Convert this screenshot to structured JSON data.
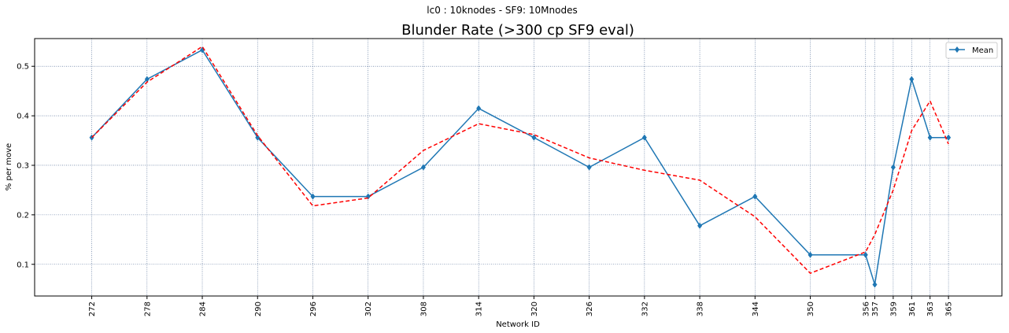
{
  "figure": {
    "suptitle": "lc0 : 10knodes - SF9: 10Mnodes"
  },
  "chart_data": {
    "type": "line",
    "title": "Blunder Rate (>300 cp SF9 eval)",
    "xlabel": "Network ID",
    "ylabel": "% per move",
    "x": [
      272,
      278,
      284,
      290,
      296,
      302,
      308,
      314,
      320,
      326,
      332,
      338,
      344,
      350,
      356,
      357,
      359,
      361,
      363,
      365
    ],
    "xticks": [
      272,
      278,
      284,
      290,
      296,
      302,
      308,
      314,
      320,
      326,
      332,
      338,
      344,
      350,
      356,
      357,
      359,
      361,
      363,
      365
    ],
    "xlim": [
      265.8,
      370.8
    ],
    "yticks": [
      0.1,
      0.2,
      0.3,
      0.4,
      0.5
    ],
    "ylim": [
      0.036,
      0.556
    ],
    "grid": true,
    "legend_position": "upper right",
    "series": [
      {
        "name": "Mean",
        "color": "#1f77b4",
        "style": "solid",
        "marker": "diamond",
        "values": [
          0.356,
          0.474,
          0.533,
          0.356,
          0.237,
          0.237,
          0.296,
          0.415,
          0.356,
          0.296,
          0.356,
          0.178,
          0.237,
          0.119,
          0.119,
          0.059,
          0.296,
          0.474,
          0.356,
          0.356
        ]
      },
      {
        "name": "",
        "color": "#ff0000",
        "style": "dashed",
        "marker": "none",
        "values": [
          0.356,
          0.468,
          0.54,
          0.36,
          0.218,
          0.234,
          0.33,
          0.384,
          0.362,
          0.315,
          0.29,
          0.27,
          0.196,
          0.082,
          0.125,
          0.16,
          0.25,
          0.37,
          0.43,
          0.343
        ]
      }
    ]
  }
}
